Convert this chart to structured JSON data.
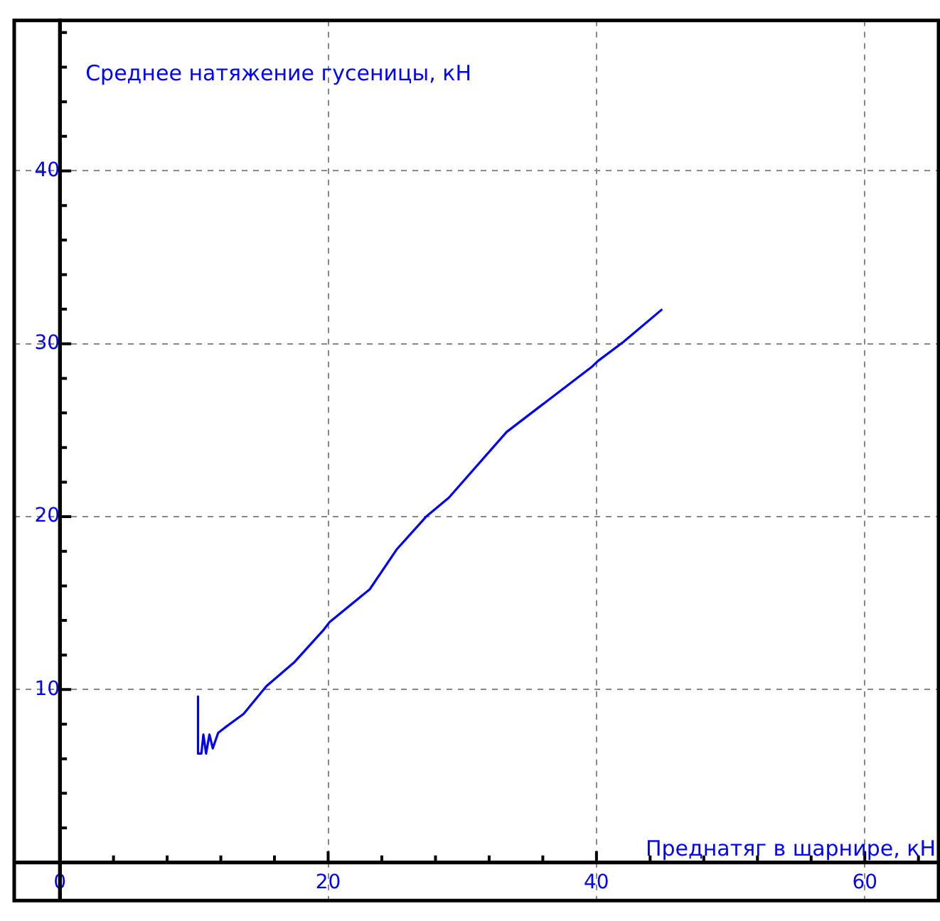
{
  "chart_data": {
    "type": "line",
    "xlabel": "Преднатяг в шарнире, кН",
    "ylabel": "Среднее натяжение гусеницы, кН",
    "xlim": [
      -3.4,
      65.5
    ],
    "ylim": [
      -2.2,
      48.7
    ],
    "xticks": [
      0,
      {
        "value": 4,
        "label": null
      },
      {
        "value": 8,
        "label": null
      },
      {
        "value": 12,
        "label": null
      },
      {
        "value": 16,
        "label": null
      },
      20,
      {
        "value": 24,
        "label": null
      },
      {
        "value": 28,
        "label": null
      },
      {
        "value": 32,
        "label": null
      },
      {
        "value": 36,
        "label": null
      },
      40,
      {
        "value": 44,
        "label": null
      },
      {
        "value": 48,
        "label": null
      },
      {
        "value": 52,
        "label": null
      },
      {
        "value": 56,
        "label": null
      },
      60,
      {
        "value": 64,
        "label": null
      }
    ],
    "yticks": [
      {
        "value": 2,
        "label": null
      },
      {
        "value": 4,
        "label": null
      },
      {
        "value": 6,
        "label": null
      },
      {
        "value": 8,
        "label": null
      },
      10,
      {
        "value": 12,
        "label": null
      },
      {
        "value": 14,
        "label": null
      },
      {
        "value": 16,
        "label": null
      },
      {
        "value": 18,
        "label": null
      },
      20,
      {
        "value": 22,
        "label": null
      },
      {
        "value": 24,
        "label": null
      },
      {
        "value": 26,
        "label": null
      },
      {
        "value": 28,
        "label": null
      },
      30,
      {
        "value": 32,
        "label": null
      },
      {
        "value": 34,
        "label": null
      },
      {
        "value": 36,
        "label": null
      },
      {
        "value": 38,
        "label": null
      },
      40,
      {
        "value": 42,
        "label": null
      },
      {
        "value": 44,
        "label": null
      },
      {
        "value": 46,
        "label": null
      },
      {
        "value": 48,
        "label": null
      }
    ],
    "grid": true,
    "marker": "none",
    "line_style": "solid",
    "series": [
      {
        "color": "#0000ff",
        "x": [
          10.3,
          10.3,
          10.55,
          10.7,
          10.9,
          11.15,
          11.4,
          11.8,
          12.3,
          13.7,
          15.4,
          17.5,
          19.6,
          20.1,
          23.1,
          25.1,
          27.3,
          29,
          33.3,
          39.7,
          40.1,
          42,
          44.9
        ],
        "values": [
          9.6,
          6.3,
          6.3,
          7.4,
          6.3,
          7.4,
          6.6,
          7.5,
          7.8,
          8.6,
          10.2,
          11.6,
          13.4,
          13.9,
          15.8,
          18.1,
          20,
          21.1,
          24.9,
          28.7,
          29,
          30.1,
          32
        ]
      }
    ]
  }
}
